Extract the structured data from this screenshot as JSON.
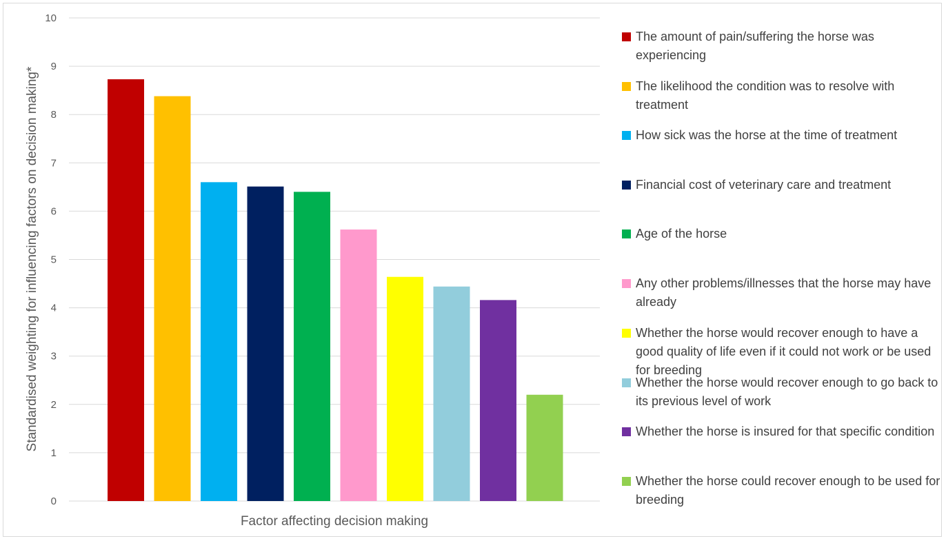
{
  "chart_data": {
    "type": "bar",
    "title": "",
    "xlabel": "Factor affecting decision making",
    "ylabel": "Standardised weighting for influencing factors on decision making*",
    "ylim": [
      0,
      10
    ],
    "yticks": [
      0,
      1,
      2,
      3,
      4,
      5,
      6,
      7,
      8,
      9,
      10
    ],
    "grid": true,
    "legend_position": "right",
    "series": [
      {
        "name": "The amount of pain/suffering the horse was experiencing",
        "value": 8.73,
        "color": "#c00000"
      },
      {
        "name": "The likelihood the condition was to resolve with treatment",
        "value": 8.38,
        "color": "#ffc000"
      },
      {
        "name": "How sick was the horse at the time of treatment",
        "value": 6.6,
        "color": "#00b0f0"
      },
      {
        "name": "Financial cost of veterinary care and treatment",
        "value": 6.51,
        "color": "#002060"
      },
      {
        "name": "Age of the horse",
        "value": 6.4,
        "color": "#00b050"
      },
      {
        "name": "Any other problems/illnesses that the horse may have already",
        "value": 5.62,
        "color": "#ff99cc"
      },
      {
        "name": "Whether the horse would recover enough to have a good quality of life even if it could not work or be used for breeding",
        "value": 4.64,
        "color": "#ffff00"
      },
      {
        "name": "Whether the horse would recover enough to go back to its previous level of work",
        "value": 4.44,
        "color": "#92cddc"
      },
      {
        "name": "Whether the horse is insured for that specific condition",
        "value": 4.16,
        "color": "#7030a0"
      },
      {
        "name": "Whether the horse could recover enough to be used for breeding",
        "value": 2.2,
        "color": "#92d050"
      }
    ]
  }
}
